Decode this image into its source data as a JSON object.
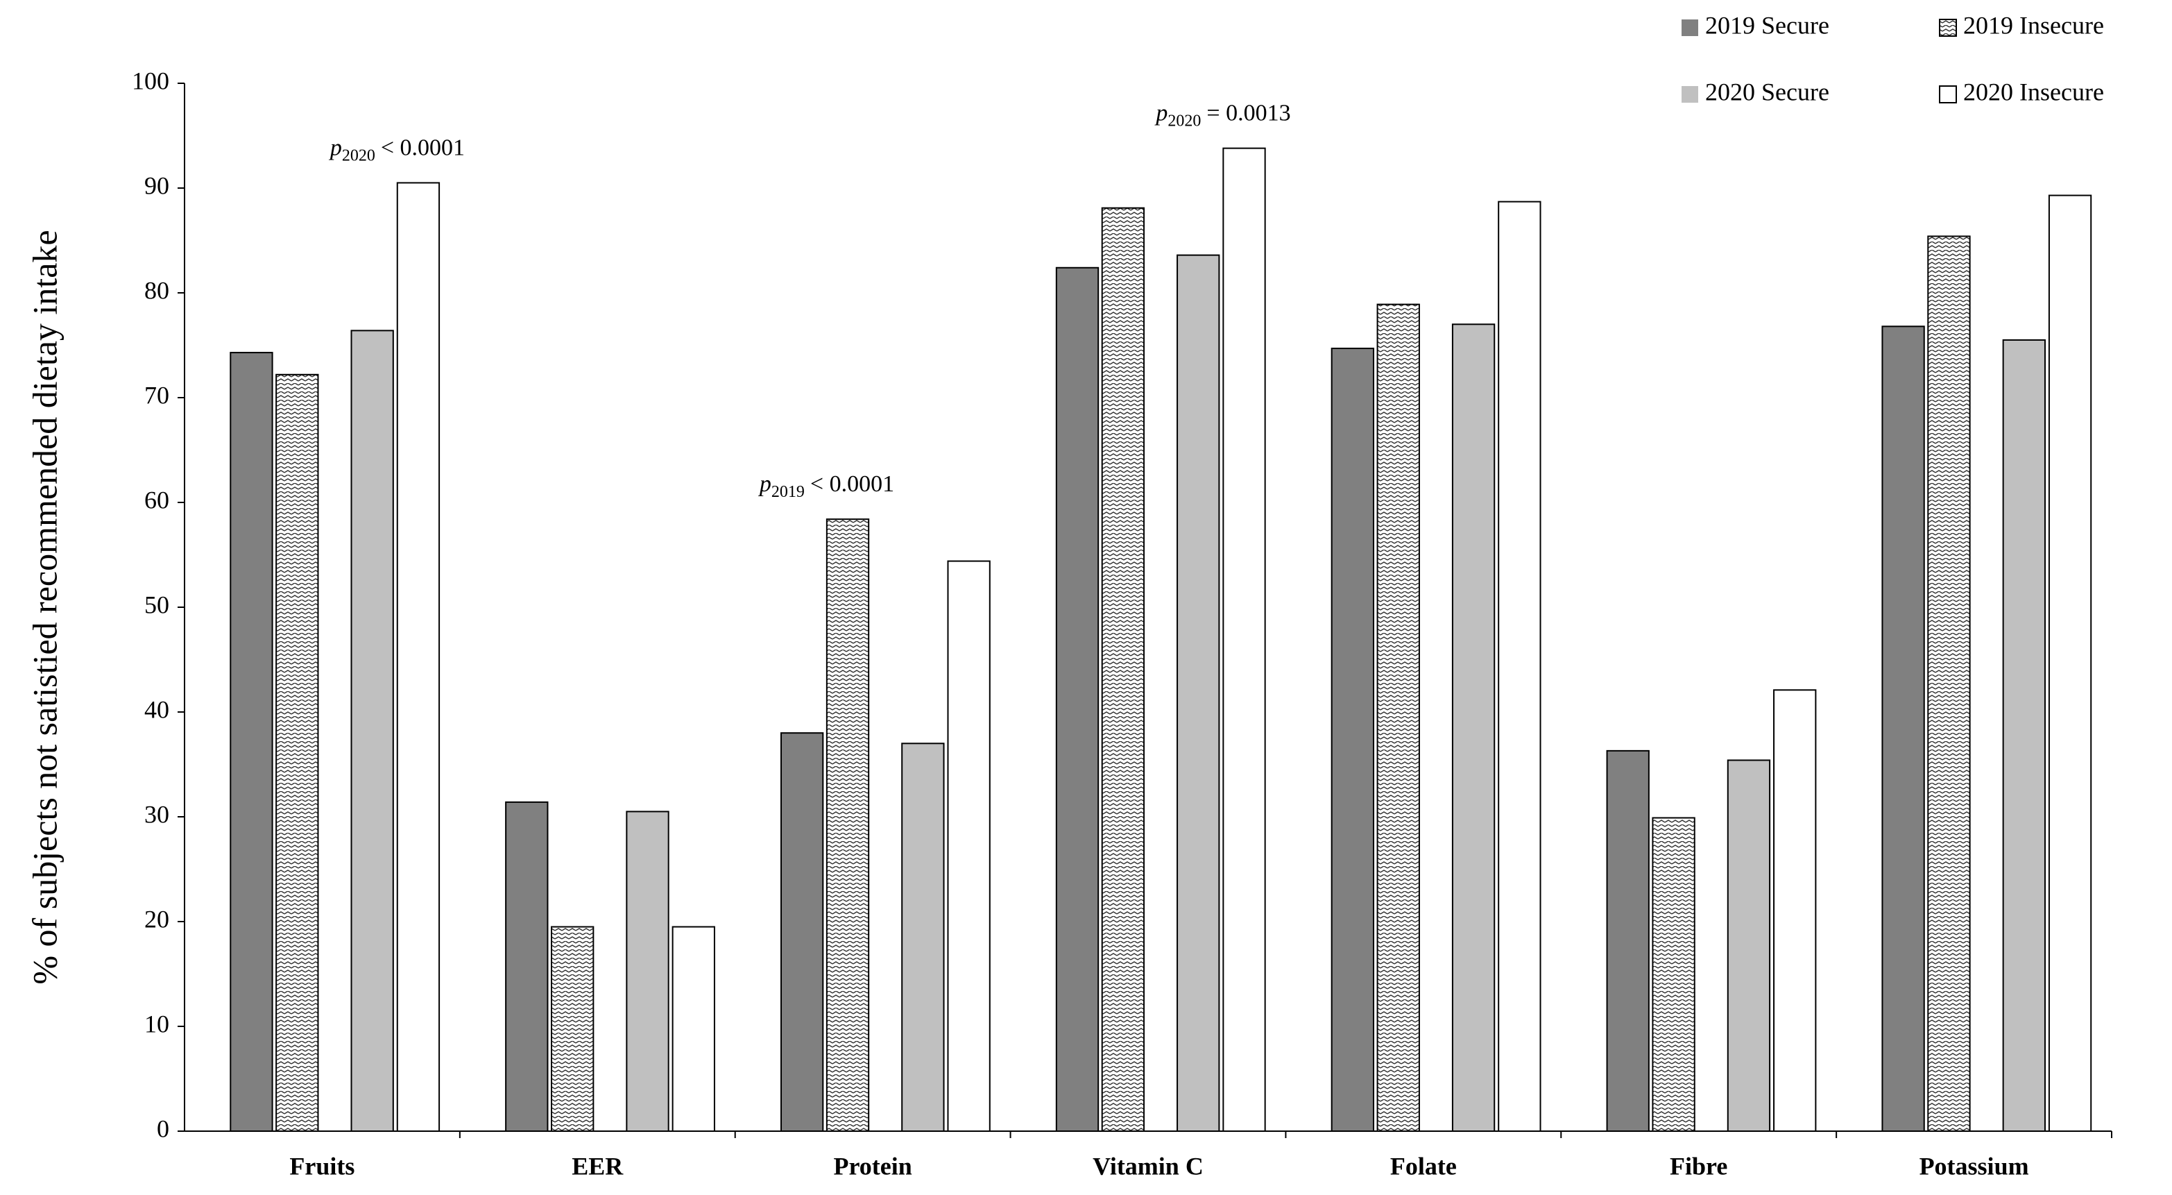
{
  "chart_data": {
    "type": "bar",
    "y_label": "% of  subjects not satistied recommended dietay intake",
    "categories": [
      "Fruits",
      "EER",
      "Protein",
      "Vitamin C",
      "Folate",
      "Fibre",
      "Potassium"
    ],
    "series": [
      {
        "name": "2019 Secure",
        "color": "#808080",
        "values": [
          74.3,
          31.4,
          38.0,
          82.4,
          74.7,
          36.3,
          76.8
        ]
      },
      {
        "name": "2019 Insecure",
        "color": "#ffffff",
        "pattern": "zigzag",
        "values": [
          72.2,
          19.5,
          58.4,
          88.1,
          78.9,
          29.9,
          85.4
        ]
      },
      {
        "name": "2020 Secure",
        "color": "#c0c0c0",
        "values": [
          76.4,
          30.5,
          37.0,
          83.6,
          77.0,
          35.4,
          75.5
        ]
      },
      {
        "name": "2020 Insecure",
        "color": "#ffffff",
        "values": [
          90.5,
          19.5,
          54.4,
          93.8,
          88.7,
          42.1,
          89.3
        ]
      }
    ],
    "annotations": [
      {
        "category": "Fruits",
        "label": "p",
        "subscript": "2020",
        "text": "< 0.0001"
      },
      {
        "category": "Protein",
        "label": "p",
        "subscript": "2019",
        "text": "< 0.0001"
      },
      {
        "category": "Vitamin C",
        "label": "p",
        "subscript": "2020",
        "text": "= 0.0013"
      }
    ],
    "ylim": [
      0,
      100
    ],
    "yticks": [
      0,
      10,
      20,
      30,
      40,
      50,
      60,
      70,
      80,
      90,
      100
    ],
    "grid": false,
    "legend": "top-right"
  }
}
